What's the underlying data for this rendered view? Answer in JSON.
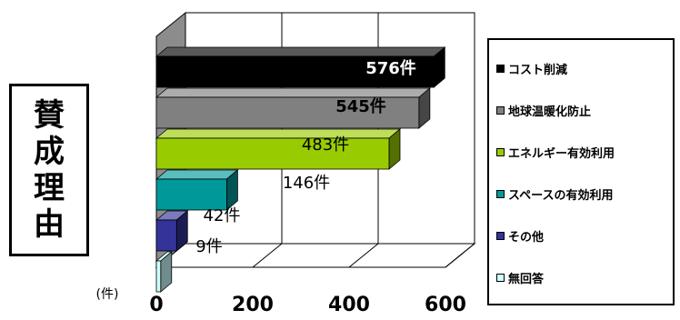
{
  "side_label": [
    "賛",
    "成",
    "理",
    "由"
  ],
  "unit_label": "(件)",
  "chart_data": {
    "type": "bar",
    "orientation": "horizontal",
    "style": "3d",
    "categories": [
      "コスト削減",
      "地球温暖化防止",
      "エネルギー有効利用",
      "スペースの有効利用",
      "その他",
      "無回答"
    ],
    "values": [
      576,
      545,
      483,
      146,
      42,
      9
    ],
    "data_labels": [
      "576件",
      "545件",
      "483件",
      "146件",
      "42件",
      "9件"
    ],
    "colors": [
      "#000000",
      "#808080",
      "#99cc00",
      "#009999",
      "#333399",
      "#ccffff"
    ],
    "xlim": [
      0,
      600
    ],
    "xticks": [
      "0",
      "200",
      "400",
      "600"
    ],
    "grid": true,
    "legend_position": "right"
  }
}
